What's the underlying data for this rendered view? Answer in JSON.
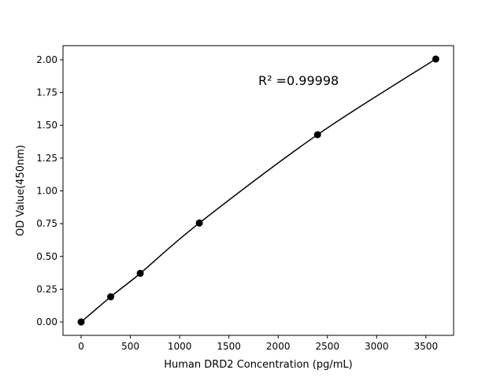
{
  "chart_data": {
    "type": "line",
    "title": "",
    "xlabel": "Human DRD2 Concentration (pg/mL)",
    "ylabel": "OD Value(450nm)",
    "annotation": "R² =0.99998",
    "x": [
      0,
      300,
      600,
      1200,
      2400,
      3600
    ],
    "y": [
      0.0,
      0.192,
      0.371,
      0.755,
      1.429,
      2.006
    ],
    "xlim": [
      -184,
      3781
    ],
    "ylim": [
      -0.102,
      2.108
    ],
    "xticks": [
      0,
      500,
      1000,
      1500,
      2000,
      2500,
      3000,
      3500
    ],
    "yticks": [
      0.0,
      0.25,
      0.5,
      0.75,
      1.0,
      1.25,
      1.5,
      1.75,
      2.0
    ],
    "ytick_labels": [
      "0.00",
      "0.25",
      "0.50",
      "0.75",
      "1.00",
      "1.25",
      "1.50",
      "1.75",
      "2.00"
    ],
    "grid": false,
    "marker": "circle",
    "color": "#000000"
  }
}
